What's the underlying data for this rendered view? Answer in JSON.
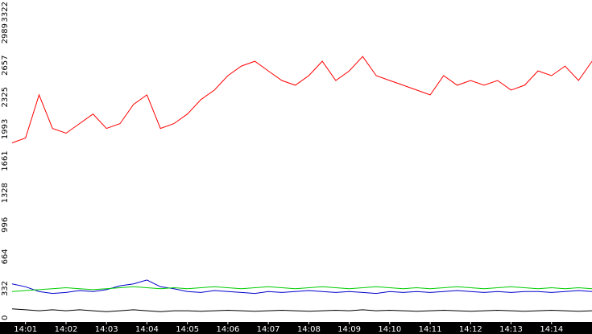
{
  "chart_data": {
    "type": "line",
    "title": "",
    "xlabel": "",
    "ylabel": "",
    "ylim": [
      0,
      3322
    ],
    "yticks": [
      0,
      332,
      664,
      996,
      1328,
      1661,
      1993,
      2325,
      2657,
      2989,
      3322
    ],
    "xticks": [
      "14:01",
      "14:02",
      "14:03",
      "14:04",
      "14:05",
      "14:06",
      "14:07",
      "14:08",
      "14:09",
      "14:10",
      "14:11",
      "14:12",
      "14:13",
      "14:14"
    ],
    "xlim": [
      "14:00:40",
      "14:15:00"
    ],
    "grid": false,
    "legend": "none",
    "background": "#ffffff",
    "x_axis_band_color": "#000000",
    "series": [
      {
        "color": "#ff0000",
        "x": [
          "14:00:40",
          "14:01:00",
          "14:01:20",
          "14:01:40",
          "14:02:00",
          "14:02:20",
          "14:02:40",
          "14:03:00",
          "14:03:20",
          "14:03:40",
          "14:04:00",
          "14:04:20",
          "14:04:40",
          "14:05:00",
          "14:05:20",
          "14:05:40",
          "14:06:00",
          "14:06:20",
          "14:06:40",
          "14:07:00",
          "14:07:20",
          "14:07:40",
          "14:08:00",
          "14:08:20",
          "14:08:40",
          "14:09:00",
          "14:09:20",
          "14:09:40",
          "14:10:00",
          "14:10:20",
          "14:10:40",
          "14:11:00",
          "14:11:20",
          "14:11:40",
          "14:12:00",
          "14:12:20",
          "14:12:40",
          "14:13:00",
          "14:13:20",
          "14:13:40",
          "14:14:00",
          "14:14:20",
          "14:14:40",
          "14:15:00"
        ],
        "values": [
          1850,
          1900,
          2350,
          2000,
          1950,
          2050,
          2150,
          2000,
          2050,
          2250,
          2350,
          2000,
          2050,
          2150,
          2300,
          2400,
          2550,
          2650,
          2700,
          2600,
          2500,
          2450,
          2550,
          2700,
          2500,
          2600,
          2750,
          2550,
          2500,
          2450,
          2400,
          2350,
          2550,
          2450,
          2500,
          2450,
          2500,
          2400,
          2450,
          2600,
          2550,
          2650,
          2500,
          2700
        ]
      },
      {
        "color": "#0000cc",
        "x": [
          "14:00:40",
          "14:01:00",
          "14:01:20",
          "14:01:40",
          "14:02:00",
          "14:02:20",
          "14:02:40",
          "14:03:00",
          "14:03:20",
          "14:03:40",
          "14:04:00",
          "14:04:20",
          "14:04:40",
          "14:05:00",
          "14:05:20",
          "14:05:40",
          "14:06:00",
          "14:06:20",
          "14:06:40",
          "14:07:00",
          "14:07:20",
          "14:07:40",
          "14:08:00",
          "14:08:20",
          "14:08:40",
          "14:09:00",
          "14:09:20",
          "14:09:40",
          "14:10:00",
          "14:10:20",
          "14:10:40",
          "14:11:00",
          "14:11:20",
          "14:11:40",
          "14:12:00",
          "14:12:20",
          "14:12:40",
          "14:13:00",
          "14:13:20",
          "14:13:40",
          "14:14:00",
          "14:14:20",
          "14:14:40",
          "14:15:00"
        ],
        "values": [
          380,
          350,
          300,
          280,
          290,
          310,
          300,
          320,
          360,
          380,
          420,
          350,
          330,
          300,
          290,
          310,
          300,
          290,
          280,
          300,
          290,
          300,
          310,
          300,
          290,
          300,
          290,
          280,
          300,
          290,
          300,
          290,
          300,
          310,
          300,
          290,
          300,
          290,
          300,
          300,
          290,
          300,
          310,
          300
        ]
      },
      {
        "color": "#00cc00",
        "x": [
          "14:00:40",
          "14:01:00",
          "14:01:20",
          "14:01:40",
          "14:02:00",
          "14:02:20",
          "14:02:40",
          "14:03:00",
          "14:03:20",
          "14:03:40",
          "14:04:00",
          "14:04:20",
          "14:04:40",
          "14:05:00",
          "14:05:20",
          "14:05:40",
          "14:06:00",
          "14:06:20",
          "14:06:40",
          "14:07:00",
          "14:07:20",
          "14:07:40",
          "14:08:00",
          "14:08:20",
          "14:08:40",
          "14:09:00",
          "14:09:20",
          "14:09:40",
          "14:10:00",
          "14:10:20",
          "14:10:40",
          "14:11:00",
          "14:11:20",
          "14:11:40",
          "14:12:00",
          "14:12:20",
          "14:12:40",
          "14:13:00",
          "14:13:20",
          "14:13:40",
          "14:14:00",
          "14:14:20",
          "14:14:40",
          "14:15:00"
        ],
        "values": [
          300,
          310,
          320,
          330,
          340,
          330,
          320,
          330,
          340,
          350,
          340,
          330,
          340,
          330,
          340,
          350,
          340,
          330,
          340,
          350,
          340,
          330,
          340,
          350,
          340,
          330,
          340,
          350,
          340,
          330,
          340,
          330,
          340,
          350,
          340,
          330,
          340,
          350,
          340,
          330,
          340,
          330,
          340,
          330
        ]
      },
      {
        "color": "#000000",
        "x": [
          "14:00:40",
          "14:01:00",
          "14:01:20",
          "14:01:40",
          "14:02:00",
          "14:02:20",
          "14:02:40",
          "14:03:00",
          "14:03:20",
          "14:03:40",
          "14:04:00",
          "14:04:20",
          "14:04:40",
          "14:05:00",
          "14:05:20",
          "14:05:40",
          "14:06:00",
          "14:06:20",
          "14:06:40",
          "14:07:00",
          "14:07:20",
          "14:07:40",
          "14:08:00",
          "14:08:20",
          "14:08:40",
          "14:09:00",
          "14:09:20",
          "14:09:40",
          "14:10:00",
          "14:10:20",
          "14:10:40",
          "14:11:00",
          "14:11:20",
          "14:11:40",
          "14:12:00",
          "14:12:20",
          "14:12:40",
          "14:13:00",
          "14:13:20",
          "14:13:40",
          "14:14:00",
          "14:14:20",
          "14:14:40",
          "14:15:00"
        ],
        "values": [
          120,
          110,
          100,
          110,
          100,
          110,
          100,
          90,
          100,
          110,
          100,
          90,
          100,
          100,
          95,
          100,
          105,
          100,
          95,
          100,
          105,
          100,
          95,
          100,
          105,
          100,
          110,
          100,
          105,
          100,
          95,
          100,
          105,
          100,
          95,
          100,
          105,
          100,
          95,
          100,
          105,
          100,
          95,
          100
        ]
      }
    ]
  }
}
